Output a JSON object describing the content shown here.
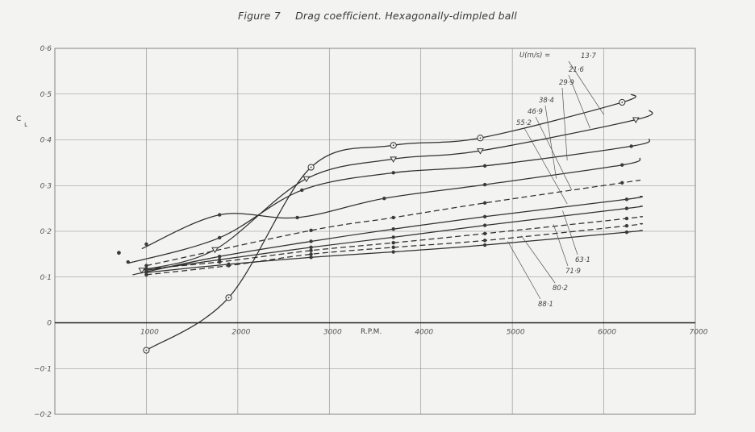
{
  "figure": {
    "number": "Figure 7",
    "caption": "Drag coefficient.  Hexagonally-dimpled ball"
  },
  "chart_data": {
    "type": "line",
    "title": "Figure 7    Drag coefficient.  Hexagonally-dimpled ball",
    "xlabel": "R.P.M.",
    "ylabel": "C_L",
    "ylabel_main": "C",
    "ylabel_sub": "L",
    "xlim": [
      0,
      7000
    ],
    "ylim": [
      -0.2,
      0.6
    ],
    "x_ticks": [
      {
        "value": 1000,
        "label": "1000"
      },
      {
        "value": 2000,
        "label": "2000"
      },
      {
        "value": 3000,
        "label": "3000"
      },
      {
        "value": 4000,
        "label": "4000"
      },
      {
        "value": 5000,
        "label": "5000"
      },
      {
        "value": 6000,
        "label": "6000"
      },
      {
        "value": 7000,
        "label": "7000"
      }
    ],
    "y_ticks": [
      {
        "value": 0.6,
        "label": "0·6"
      },
      {
        "value": 0.5,
        "label": "0·5"
      },
      {
        "value": 0.4,
        "label": "0·4"
      },
      {
        "value": 0.3,
        "label": "0·3"
      },
      {
        "value": 0.2,
        "label": "0·2"
      },
      {
        "value": 0.1,
        "label": "0·1"
      },
      {
        "value": 0,
        "label": "0"
      },
      {
        "value": -0.1,
        "label": "−0·1"
      },
      {
        "value": -0.2,
        "label": "−0·2"
      }
    ],
    "grid": true,
    "legend_title": "U(m/s) =",
    "series": [
      {
        "name": "13·7",
        "dashed": false,
        "marker": "circle-dot",
        "x": [
          1000,
          1900,
          2800,
          3700,
          4650,
          6200,
          6300
        ],
        "y": [
          -0.06,
          0.055,
          0.34,
          0.388,
          0.404,
          0.482,
          0.5
        ],
        "points": [
          [
            1000,
            -0.06
          ],
          [
            1900,
            0.055
          ],
          [
            2800,
            0.34
          ],
          [
            3700,
            0.388
          ],
          [
            4650,
            0.404
          ],
          [
            6200,
            0.482
          ]
        ]
      },
      {
        "name": "21·6",
        "dashed": false,
        "marker": "triangle",
        "x": [
          950,
          1750,
          2750,
          3700,
          4650,
          6350,
          6500
        ],
        "y": [
          0.115,
          0.16,
          0.315,
          0.358,
          0.376,
          0.444,
          0.465
        ],
        "points": [
          [
            950,
            0.115
          ],
          [
            1750,
            0.16
          ],
          [
            2750,
            0.315
          ],
          [
            3700,
            0.358
          ],
          [
            4650,
            0.376
          ],
          [
            6350,
            0.444
          ]
        ]
      },
      {
        "name": "29·9",
        "dashed": false,
        "marker": "dot",
        "x": [
          800,
          1800,
          2700,
          3700,
          4700,
          6300,
          6500
        ],
        "y": [
          0.13,
          0.186,
          0.29,
          0.328,
          0.343,
          0.386,
          0.402
        ],
        "points": [
          [
            800,
            0.133
          ],
          [
            1800,
            0.186
          ],
          [
            2700,
            0.29
          ],
          [
            3700,
            0.328
          ],
          [
            4700,
            0.343
          ],
          [
            6300,
            0.386
          ]
        ]
      },
      {
        "name": "38·4",
        "dashed": false,
        "marker": "dot",
        "x": [
          950,
          1800,
          2650,
          3600,
          4700,
          6200,
          6400
        ],
        "y": [
          0.162,
          0.236,
          0.23,
          0.272,
          0.302,
          0.345,
          0.36
        ],
        "points": [
          [
            1000,
            0.172
          ],
          [
            1800,
            0.236
          ],
          [
            2650,
            0.23
          ],
          [
            3600,
            0.272
          ],
          [
            4700,
            0.302
          ],
          [
            6200,
            0.345
          ]
        ]
      },
      {
        "name": "46·9",
        "dashed": true,
        "marker": "dot",
        "x": [
          1000,
          2800,
          3700,
          4700,
          6200,
          6400
        ],
        "y": [
          0.125,
          0.202,
          0.23,
          0.262,
          0.306,
          0.312
        ],
        "points": [
          [
            1000,
            0.125
          ],
          [
            2800,
            0.202
          ],
          [
            3700,
            0.23
          ],
          [
            4700,
            0.262
          ],
          [
            6200,
            0.306
          ]
        ]
      },
      {
        "name": "55·2",
        "dashed": false,
        "marker": "dot",
        "x": [
          850,
          1800,
          2800,
          3700,
          4700,
          6250,
          6400
        ],
        "y": [
          0.105,
          0.145,
          0.178,
          0.205,
          0.232,
          0.27,
          0.277
        ],
        "points": [
          [
            1000,
            0.112
          ],
          [
            1800,
            0.145
          ],
          [
            2800,
            0.178
          ],
          [
            3700,
            0.205
          ],
          [
            4700,
            0.232
          ],
          [
            6250,
            0.27
          ]
        ]
      },
      {
        "name": "63·1",
        "dashed": false,
        "marker": "dot",
        "x": [
          1000,
          1800,
          2800,
          3700,
          4700,
          6250,
          6400
        ],
        "y": [
          0.115,
          0.138,
          0.165,
          0.187,
          0.213,
          0.25,
          0.255
        ],
        "points": [
          [
            1000,
            0.115
          ],
          [
            1800,
            0.138
          ],
          [
            2800,
            0.165
          ],
          [
            3700,
            0.187
          ],
          [
            4700,
            0.213
          ],
          [
            6250,
            0.25
          ]
        ]
      },
      {
        "name": "71·9",
        "dashed": true,
        "marker": "dot",
        "x": [
          1000,
          1800,
          2800,
          3700,
          4700,
          6250,
          6400
        ],
        "y": [
          0.118,
          0.133,
          0.158,
          0.175,
          0.195,
          0.228,
          0.232
        ],
        "points": [
          [
            1000,
            0.118
          ],
          [
            1800,
            0.133
          ],
          [
            2800,
            0.158
          ],
          [
            3700,
            0.175
          ],
          [
            4700,
            0.195
          ],
          [
            6250,
            0.228
          ]
        ]
      },
      {
        "name": "80·2",
        "dashed": true,
        "marker": "dot",
        "x": [
          1000,
          1900,
          2800,
          3700,
          4700,
          6250,
          6400
        ],
        "y": [
          0.105,
          0.125,
          0.15,
          0.165,
          0.18,
          0.212,
          0.217
        ],
        "points": [
          [
            1000,
            0.105
          ],
          [
            1900,
            0.125
          ],
          [
            2800,
            0.15
          ],
          [
            3700,
            0.165
          ],
          [
            4700,
            0.18
          ],
          [
            6250,
            0.212
          ]
        ]
      },
      {
        "name": "88·1",
        "dashed": false,
        "marker": "dot",
        "x": [
          1000,
          1900,
          2800,
          3700,
          4700,
          6250,
          6400
        ],
        "y": [
          0.11,
          0.128,
          0.143,
          0.155,
          0.17,
          0.198,
          0.202
        ],
        "points": [
          [
            1000,
            0.11
          ],
          [
            1900,
            0.128
          ],
          [
            2800,
            0.143
          ],
          [
            3700,
            0.155
          ],
          [
            4700,
            0.17
          ],
          [
            6250,
            0.198
          ]
        ]
      }
    ],
    "stray_points": [
      [
        700,
        0.153
      ]
    ],
    "series_label_order": [
      "13·7",
      "21·6",
      "29·9",
      "38·4",
      "46·9",
      "55·2",
      "63·1",
      "71·9",
      "80·2",
      "88·1"
    ]
  }
}
